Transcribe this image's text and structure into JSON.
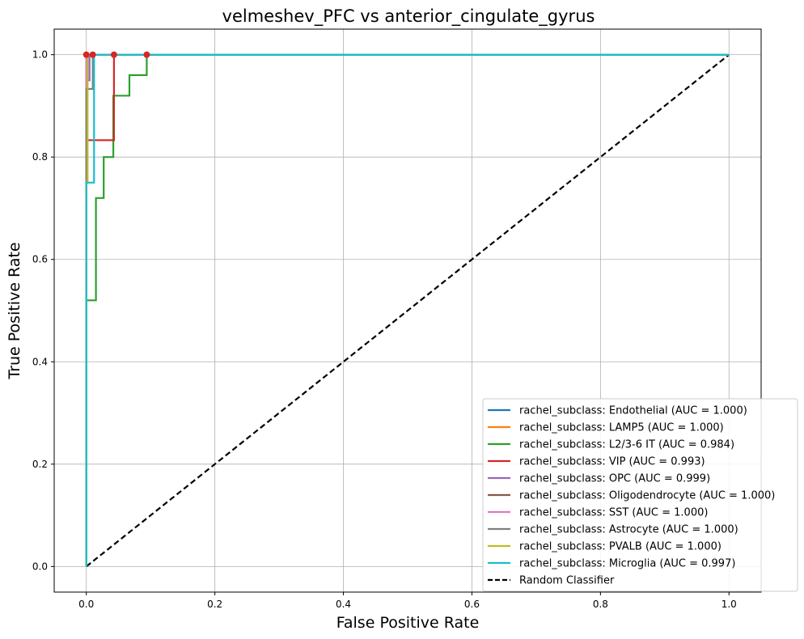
{
  "chart_data": {
    "type": "line",
    "title": "velmeshev_PFC vs anterior_cingulate_gyrus",
    "xlabel": "False Positive Rate",
    "ylabel": "True Positive Rate",
    "xlim": [
      -0.05,
      1.05
    ],
    "ylim": [
      -0.05,
      1.05
    ],
    "xticks": [
      0.0,
      0.2,
      0.4,
      0.6,
      0.8,
      1.0
    ],
    "yticks": [
      0.0,
      0.2,
      0.4,
      0.6,
      0.8,
      1.0
    ],
    "xtick_labels": [
      "0.0",
      "0.2",
      "0.4",
      "0.6",
      "0.8",
      "1.0"
    ],
    "ytick_labels": [
      "0.0",
      "0.2",
      "0.4",
      "0.6",
      "0.8",
      "1.0"
    ],
    "grid": true,
    "legend_position": "lower-right",
    "series": [
      {
        "name": "rachel_subclass: Endothelial (AUC = 1.000)",
        "color": "#1f77b4",
        "x": [
          0,
          0,
          1
        ],
        "y": [
          0,
          1,
          1
        ]
      },
      {
        "name": "rachel_subclass: LAMP5 (AUC = 1.000)",
        "color": "#ff7f0e",
        "x": [
          0,
          0,
          1
        ],
        "y": [
          0,
          1,
          1
        ]
      },
      {
        "name": "rachel_subclass: L2/3-6 IT (AUC = 0.984)",
        "color": "#2ca02c",
        "x": [
          0,
          0,
          0.015,
          0.015,
          0.027,
          0.027,
          0.042,
          0.042,
          0.067,
          0.067,
          0.094,
          0.094,
          1
        ],
        "y": [
          0,
          0.52,
          0.52,
          0.72,
          0.72,
          0.8,
          0.8,
          0.92,
          0.92,
          0.96,
          0.96,
          1.0,
          1.0
        ]
      },
      {
        "name": "rachel_subclass: VIP (AUC = 0.993)",
        "color": "#d62728",
        "x": [
          0,
          0,
          0.043,
          0.043,
          1
        ],
        "y": [
          0,
          0.833,
          0.833,
          1.0,
          1.0
        ]
      },
      {
        "name": "rachel_subclass: OPC (AUC = 0.999)",
        "color": "#9467bd",
        "x": [
          0,
          0,
          0.005,
          0.005,
          1
        ],
        "y": [
          0,
          0.95,
          0.95,
          1.0,
          1.0
        ]
      },
      {
        "name": "rachel_subclass: Oligodendrocyte (AUC = 1.000)",
        "color": "#8c564b",
        "x": [
          0,
          0,
          1
        ],
        "y": [
          0,
          1,
          1
        ]
      },
      {
        "name": "rachel_subclass: SST (AUC = 1.000)",
        "color": "#e377c2",
        "x": [
          0,
          0,
          1
        ],
        "y": [
          0,
          1,
          1
        ]
      },
      {
        "name": "rachel_subclass: Astrocyte (AUC = 1.000)",
        "color": "#7f7f7f",
        "x": [
          0,
          0,
          0.01,
          0.01,
          1
        ],
        "y": [
          0,
          0.933,
          0.933,
          1.0,
          1.0
        ]
      },
      {
        "name": "rachel_subclass: PVALB (AUC = 1.000)",
        "color": "#bcbd22",
        "x": [
          0,
          0,
          0.002,
          0.002,
          1
        ],
        "y": [
          0,
          0.75,
          0.75,
          1.0,
          1.0
        ]
      },
      {
        "name": "rachel_subclass: Microglia (AUC = 0.997)",
        "color": "#17becf",
        "x": [
          0,
          0,
          0.012,
          0.012,
          1
        ],
        "y": [
          0,
          0.75,
          0.75,
          1.0,
          1.0
        ]
      }
    ],
    "random_classifier": {
      "name": "Random Classifier",
      "color": "#000000",
      "x": [
        0,
        1
      ],
      "y": [
        0,
        1
      ]
    },
    "markers": [
      {
        "x": 0.0,
        "y": 1.0,
        "color": "#d62728"
      },
      {
        "x": 0.01,
        "y": 1.0,
        "color": "#d62728"
      },
      {
        "x": 0.043,
        "y": 1.0,
        "color": "#d62728"
      },
      {
        "x": 0.094,
        "y": 1.0,
        "color": "#d62728"
      }
    ]
  }
}
